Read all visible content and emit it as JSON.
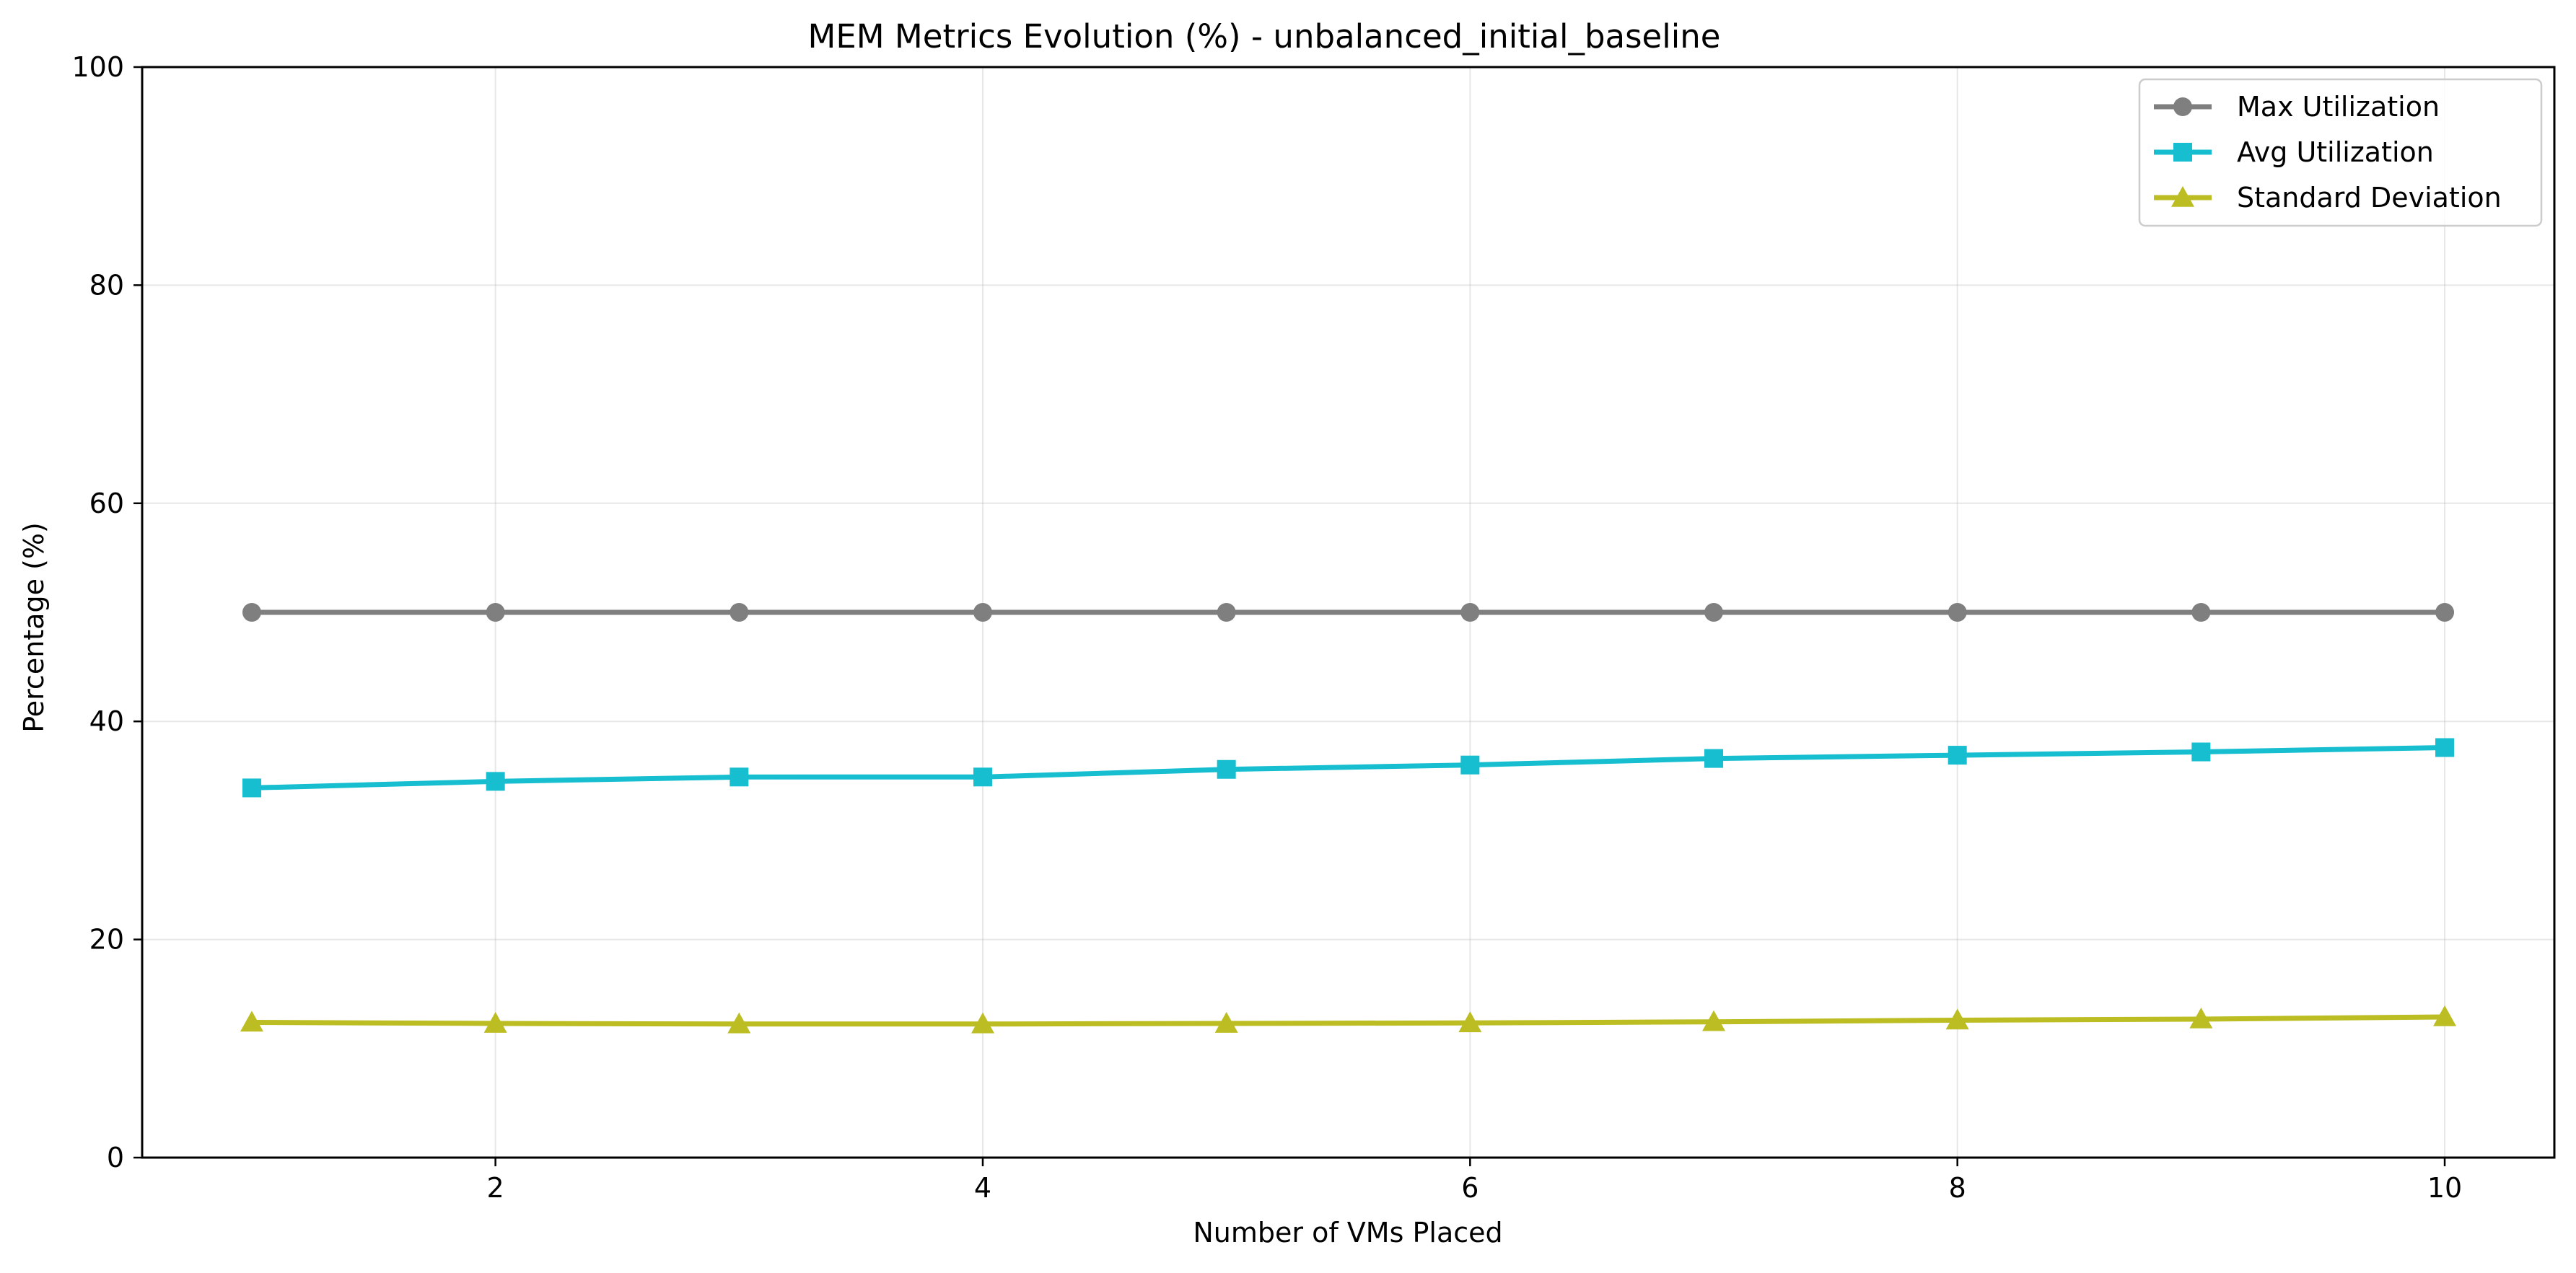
{
  "chart_data": {
    "type": "line",
    "title": "MEM Metrics Evolution (%) - unbalanced_initial_baseline",
    "xlabel": "Number of VMs Placed",
    "ylabel": "Percentage (%)",
    "x": [
      1,
      2,
      3,
      4,
      5,
      6,
      7,
      8,
      9,
      10
    ],
    "xlim": [
      0.55,
      10.45
    ],
    "ylim": [
      0,
      100
    ],
    "xticks": [
      2,
      4,
      6,
      8,
      10
    ],
    "yticks": [
      0,
      20,
      40,
      60,
      80,
      100
    ],
    "grid": true,
    "legend_position": "top-right",
    "series": [
      {
        "name": "Max Utilization",
        "color": "#7f7f7f",
        "marker": "circle",
        "values": [
          50.0,
          50.0,
          50.0,
          50.0,
          50.0,
          50.0,
          50.0,
          50.0,
          50.0,
          50.0
        ]
      },
      {
        "name": "Avg Utilization",
        "color": "#17becf",
        "marker": "square",
        "values": [
          33.9,
          34.5,
          34.9,
          34.9,
          35.6,
          36.0,
          36.6,
          36.9,
          37.2,
          37.6
        ]
      },
      {
        "name": "Standard Deviation",
        "color": "#bcbd22",
        "marker": "triangle",
        "values": [
          12.4,
          12.3,
          12.25,
          12.25,
          12.3,
          12.35,
          12.45,
          12.6,
          12.7,
          12.9
        ]
      }
    ]
  }
}
